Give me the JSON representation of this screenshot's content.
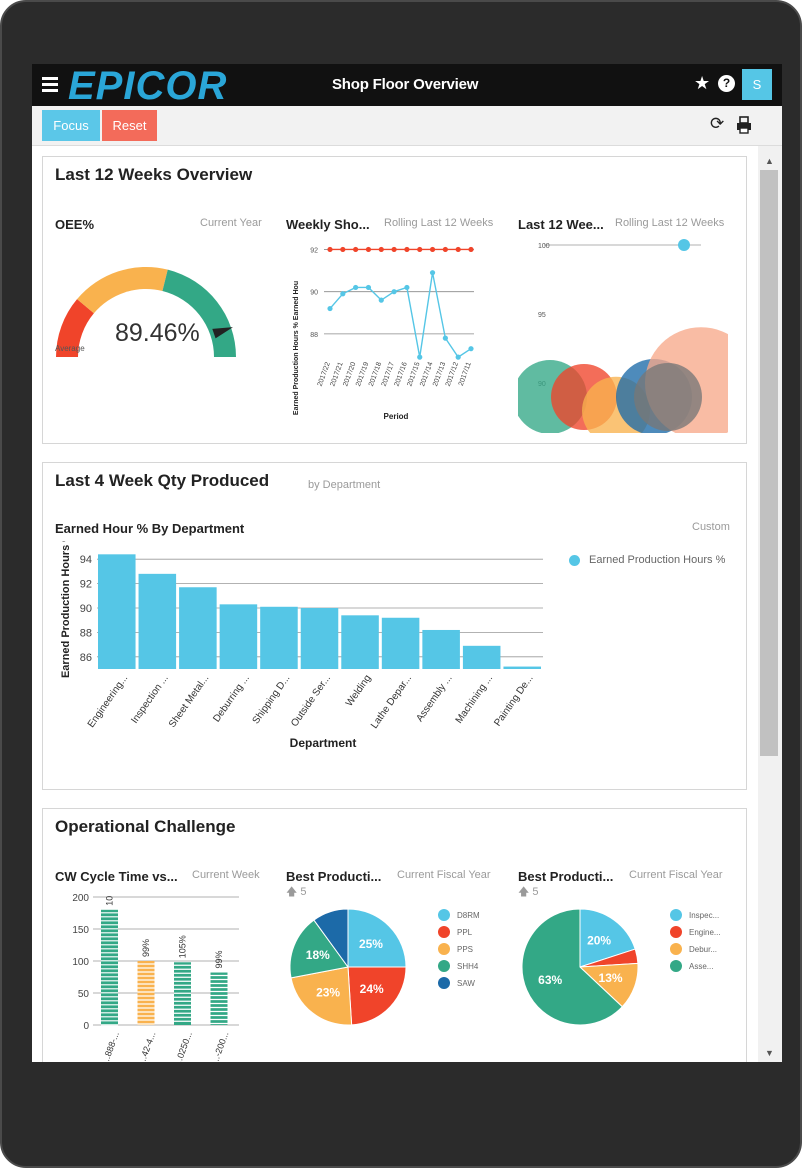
{
  "app": {
    "logo_text": "EPICOR",
    "title": "Shop Floor Overview",
    "user_initial": "S"
  },
  "toolbar": {
    "focus_label": "Focus",
    "reset_label": "Reset"
  },
  "colors": {
    "accent": "#55c6e6",
    "reset": "#f36b5a",
    "green": "#33a886",
    "orange": "#f9b24e",
    "red": "#f0442a",
    "navy": "#1c6aa8"
  },
  "card1": {
    "title": "Last 12 Weeks Overview",
    "oee": {
      "title": "OEE%",
      "subtitle": "Current Year",
      "value": "89.46%",
      "average_label": "Average"
    },
    "weekly": {
      "title": "Weekly Sho...",
      "subtitle": "Rolling Last 12 Weeks",
      "ylabel": "Earned Production Hours % Earned Hou",
      "xlabel": "Period"
    },
    "last12": {
      "title": "Last 12 Wee...",
      "subtitle": "Rolling Last 12 Weeks"
    }
  },
  "card2": {
    "title": "Last 4 Week Qty Produced",
    "subtitle": "by Department",
    "chart_title": "Earned Hour % By Department",
    "chart_sub": "Custom"
  },
  "card3": {
    "title": "Operational Challenge",
    "cycle": {
      "title": "CW Cycle Time vs...",
      "subtitle": "Current Week"
    },
    "best1": {
      "title": "Best Producti...",
      "subtitle": "Current Fiscal Year",
      "count": "5"
    },
    "best2": {
      "title": "Best Producti...",
      "subtitle": "Current Fiscal Year",
      "count": "5"
    }
  },
  "chart_data": [
    {
      "type": "gauge",
      "value": 89.46,
      "min": 0,
      "max": 100,
      "bands": [
        {
          "color": "#f0442a"
        },
        {
          "color": "#f9b24e"
        },
        {
          "color": "#33a886"
        }
      ]
    },
    {
      "type": "line",
      "xlabel": "Period",
      "ylabel": "Earned Production Hours % Earned Hou",
      "categories": [
        "2017/22",
        "2017/21",
        "2017/20",
        "2017/19",
        "2017/18",
        "2017/17",
        "2017/16",
        "2017/15",
        "2017/14",
        "2017/13",
        "2017/12",
        "2017/11"
      ],
      "yticks": [
        88,
        90,
        92
      ],
      "ylim": [
        87,
        92.4
      ],
      "series": [
        {
          "color": "#f0442a",
          "values": [
            92,
            92,
            92,
            92,
            92,
            92,
            92,
            92,
            92,
            92,
            92,
            92
          ]
        },
        {
          "color": "#55c6e6",
          "values": [
            89.2,
            89.9,
            90.2,
            90.2,
            89.6,
            90,
            90.2,
            86.9,
            90.9,
            87.8,
            86.9,
            87.3
          ]
        }
      ]
    },
    {
      "type": "bubble",
      "yticks": [
        90,
        95,
        100
      ],
      "points": [
        {
          "y": 100,
          "r": 6,
          "color": "#55c6e6"
        },
        {
          "y": 90,
          "r": 37,
          "color": "#33a886"
        },
        {
          "y": 90,
          "r": 33,
          "color": "#f0442a"
        },
        {
          "y": 89,
          "r": 34,
          "color": "#f9b24e"
        },
        {
          "y": 90,
          "r": 38,
          "color": "#1c6aa8"
        },
        {
          "y": 91,
          "r": 56,
          "color": "#f7a98a"
        },
        {
          "y": 90,
          "r": 34,
          "color": "#777777"
        }
      ]
    },
    {
      "type": "bar",
      "title": "Earned Hour % By Department",
      "xlabel": "Department",
      "ylabel": "Earned Production Hours %",
      "categories": [
        "Engineering...",
        "Inspection ...",
        "Sheet Metal...",
        "Deburring ...",
        "Shipping D...",
        "Outside Ser...",
        "Welding",
        "Lathe Depar...",
        "Assembly ...",
        "Machining ...",
        "Painting De..."
      ],
      "values": [
        94.4,
        92.8,
        91.7,
        90.3,
        90.1,
        90.0,
        89.4,
        89.2,
        88.2,
        86.9,
        85.2
      ],
      "yticks": [
        86,
        88,
        90,
        92,
        94
      ],
      "ylim": [
        85,
        95
      ],
      "legend": "Earned Production Hours %",
      "color": "#55c6e6"
    },
    {
      "type": "bar",
      "title": "CW Cycle Time vs...",
      "categories": [
        "...888-...",
        "...42-4...",
        "...0250...",
        "...-200..."
      ],
      "values": [
        180,
        100,
        98,
        82
      ],
      "labels": [
        "10",
        "99%",
        "105%",
        "99%"
      ],
      "yticks": [
        0,
        50,
        100,
        150,
        200
      ],
      "ylim": [
        0,
        200
      ],
      "colors": [
        "#33a886",
        "#f9b24e",
        "#33a886",
        "#33a886"
      ]
    },
    {
      "type": "pie",
      "legend": [
        "D8RM",
        "PPL",
        "PPS",
        "SHH4",
        "SAW"
      ],
      "values": [
        25,
        24,
        23,
        18,
        10
      ],
      "labels": [
        "25%",
        "24%",
        "23%",
        "18%",
        ""
      ],
      "colors": [
        "#55c6e6",
        "#f0442a",
        "#f9b24e",
        "#33a886",
        "#1c6aa8"
      ]
    },
    {
      "type": "pie",
      "legend": [
        "Inspec...",
        "Engine...",
        "Debur...",
        "Asse..."
      ],
      "values": [
        20,
        4,
        13,
        63
      ],
      "labels": [
        "20%",
        "",
        "13%",
        "63%"
      ],
      "colors": [
        "#55c6e6",
        "#f0442a",
        "#f9b24e",
        "#33a886"
      ]
    }
  ]
}
